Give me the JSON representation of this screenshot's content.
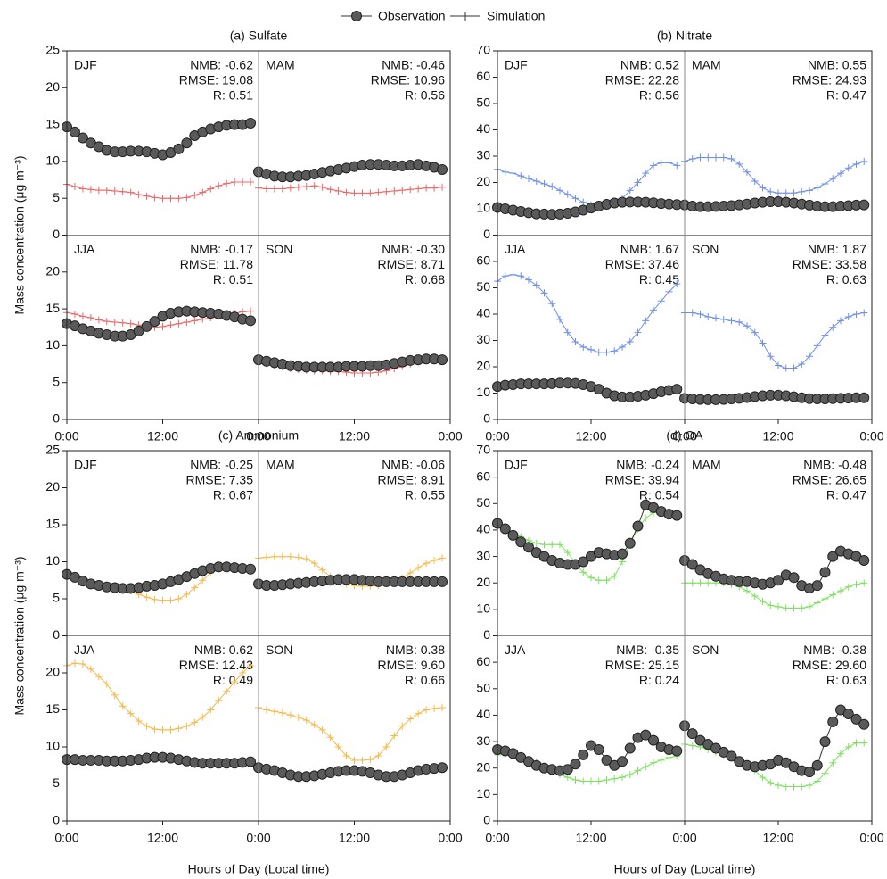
{
  "legend": {
    "observation": "Observation",
    "simulation": "Simulation",
    "observation_color": "#5a5a5a"
  },
  "chart_data": [
    {
      "type": "line",
      "title": "(a) Sulfate",
      "y_label": "Mass concentration (μg m⁻³)",
      "x": [
        0,
        1,
        2,
        3,
        4,
        5,
        6,
        7,
        8,
        9,
        10,
        11,
        12,
        13,
        14,
        15,
        16,
        17,
        18,
        19,
        20,
        21,
        22,
        23
      ],
      "xlim": [
        0,
        24
      ],
      "xticks": [
        {
          "value": 0,
          "label": "0:00"
        },
        {
          "value": 12,
          "label": "12:00"
        },
        {
          "value": 24,
          "label": "0:00"
        }
      ],
      "ylim": [
        0,
        25
      ],
      "yticks": [
        0,
        5,
        10,
        15,
        20,
        25
      ],
      "seasons": [
        "DJF",
        "MAM",
        "JJA",
        "SON"
      ],
      "stats": [
        [
          "NMB: -0.62",
          "RMSE: 19.08",
          "R: 0.51"
        ],
        [
          "NMB: -0.46",
          "RMSE: 10.96",
          "R: 0.56"
        ],
        [
          "NMB: -0.17",
          "RMSE: 11.78",
          "R: 0.51"
        ],
        [
          "NMB: -0.30",
          "RMSE: 8.71",
          "R: 0.68"
        ]
      ],
      "observation": {
        "values": [
          [
            14.7,
            14.0,
            13.2,
            12.5,
            12.0,
            11.5,
            11.3,
            11.3,
            11.4,
            11.4,
            11.3,
            11.1,
            10.9,
            11.2,
            11.7,
            12.5,
            13.5,
            14.0,
            14.4,
            14.7,
            14.9,
            15.0,
            15.0,
            15.2
          ],
          [
            8.6,
            8.3,
            8.0,
            7.9,
            7.9,
            8.0,
            8.1,
            8.3,
            8.5,
            8.7,
            8.9,
            9.1,
            9.3,
            9.5,
            9.6,
            9.6,
            9.5,
            9.4,
            9.4,
            9.5,
            9.6,
            9.4,
            9.2,
            8.9
          ],
          [
            13.0,
            12.7,
            12.3,
            12.0,
            11.7,
            11.5,
            11.3,
            11.3,
            11.5,
            12.0,
            12.6,
            13.3,
            14.0,
            14.4,
            14.6,
            14.7,
            14.6,
            14.5,
            14.4,
            14.3,
            14.1,
            13.9,
            13.6,
            13.4
          ],
          [
            8.1,
            7.9,
            7.7,
            7.5,
            7.3,
            7.2,
            7.1,
            7.1,
            7.1,
            7.1,
            7.1,
            7.2,
            7.2,
            7.2,
            7.3,
            7.3,
            7.4,
            7.6,
            7.8,
            8.0,
            8.1,
            8.2,
            8.2,
            8.1
          ]
        ]
      },
      "simulation": {
        "color": "#e8686b",
        "values": [
          [
            6.9,
            6.6,
            6.3,
            6.2,
            6.1,
            6.1,
            6.0,
            5.9,
            5.8,
            5.5,
            5.3,
            5.1,
            5.0,
            5.0,
            5.0,
            5.1,
            5.4,
            5.8,
            6.3,
            6.7,
            7.0,
            7.2,
            7.2,
            7.2
          ],
          [
            6.4,
            6.3,
            6.3,
            6.3,
            6.4,
            6.5,
            6.6,
            6.7,
            6.5,
            6.2,
            6.0,
            5.8,
            5.7,
            5.7,
            5.7,
            5.8,
            5.9,
            6.0,
            6.1,
            6.2,
            6.3,
            6.4,
            6.4,
            6.5
          ],
          [
            14.5,
            14.3,
            14.0,
            13.8,
            13.5,
            13.3,
            13.2,
            13.1,
            13.0,
            12.8,
            12.6,
            12.5,
            12.6,
            12.8,
            13.0,
            13.2,
            13.4,
            13.6,
            13.8,
            14.0,
            14.2,
            14.4,
            14.6,
            14.7
          ],
          [
            7.9,
            7.6,
            7.3,
            7.1,
            6.9,
            6.8,
            6.7,
            6.6,
            6.6,
            6.5,
            6.5,
            6.4,
            6.3,
            6.3,
            6.3,
            6.4,
            6.6,
            6.9,
            7.2,
            7.5,
            7.8,
            8.0,
            8.0,
            8.0
          ]
        ]
      }
    },
    {
      "type": "line",
      "title": "(b) Nitrate",
      "x": [
        0,
        1,
        2,
        3,
        4,
        5,
        6,
        7,
        8,
        9,
        10,
        11,
        12,
        13,
        14,
        15,
        16,
        17,
        18,
        19,
        20,
        21,
        22,
        23
      ],
      "xlim": [
        0,
        24
      ],
      "xticks": [
        {
          "value": 0,
          "label": "0:00"
        },
        {
          "value": 12,
          "label": "12:00"
        },
        {
          "value": 24,
          "label": "0:00"
        }
      ],
      "ylim": [
        0,
        70
      ],
      "yticks": [
        0,
        10,
        20,
        30,
        40,
        50,
        60,
        70
      ],
      "seasons": [
        "DJF",
        "MAM",
        "JJA",
        "SON"
      ],
      "stats": [
        [
          "NMB: 0.52",
          "RMSE: 22.28",
          "R: 0.56"
        ],
        [
          "NMB: 0.55",
          "RMSE: 24.93",
          "R: 0.47"
        ],
        [
          "NMB: 1.67",
          "RMSE: 37.46",
          "R: 0.45"
        ],
        [
          "NMB: 1.87",
          "RMSE: 33.58",
          "R: 0.63"
        ]
      ],
      "observation": {
        "values": [
          [
            10.5,
            10.0,
            9.5,
            9.0,
            8.5,
            8.1,
            8.0,
            7.9,
            8.0,
            8.3,
            8.8,
            9.5,
            10.3,
            11.0,
            11.7,
            12.2,
            12.5,
            12.6,
            12.6,
            12.5,
            12.3,
            12.0,
            11.8,
            11.6
          ],
          [
            11.5,
            11.0,
            10.8,
            10.8,
            10.9,
            11.0,
            11.2,
            11.5,
            11.8,
            12.2,
            12.5,
            12.7,
            12.7,
            12.5,
            12.2,
            11.8,
            11.4,
            11.0,
            10.8,
            10.8,
            11.0,
            11.2,
            11.4,
            11.5
          ],
          [
            12.5,
            13.0,
            13.2,
            13.5,
            13.5,
            13.5,
            13.5,
            13.6,
            13.8,
            13.8,
            13.7,
            13.2,
            12.5,
            11.5,
            10.0,
            9.0,
            8.5,
            8.5,
            8.8,
            9.2,
            9.8,
            10.5,
            11.0,
            11.5
          ],
          [
            8.0,
            7.8,
            7.6,
            7.5,
            7.5,
            7.6,
            7.8,
            8.0,
            8.3,
            8.7,
            9.0,
            9.2,
            9.2,
            9.0,
            8.6,
            8.2,
            7.9,
            7.8,
            7.8,
            7.9,
            8.0,
            8.1,
            8.2,
            8.2
          ]
        ]
      },
      "simulation": {
        "color": "#6f8fe8",
        "values": [
          [
            25,
            24,
            23.5,
            22.5,
            21.5,
            20.5,
            19.5,
            18.5,
            17,
            15.5,
            14,
            12.5,
            11.5,
            11,
            11,
            12,
            14,
            17,
            20,
            23.5,
            26.5,
            27.5,
            27.5,
            26.5
          ],
          [
            28,
            29,
            29.5,
            29.5,
            29.5,
            29.5,
            29,
            27,
            24,
            20.5,
            18,
            16.5,
            16,
            16,
            16,
            16.5,
            17,
            18,
            19.5,
            21.5,
            23.5,
            25.5,
            27,
            28
          ],
          [
            52.5,
            54.5,
            55,
            54.5,
            53,
            51,
            48,
            44,
            38,
            33,
            29.5,
            27.5,
            26.5,
            25.5,
            25.5,
            26,
            27.5,
            29.5,
            33,
            37.5,
            41.5,
            45,
            48.5,
            51.5
          ],
          [
            40.5,
            40.5,
            40,
            39,
            38.5,
            38,
            37.5,
            37,
            35.5,
            33,
            29,
            24,
            20.5,
            19.5,
            19.5,
            21,
            24,
            28,
            32,
            35,
            37.5,
            39,
            40,
            40.5
          ]
        ]
      }
    },
    {
      "type": "line",
      "title": "(c) Ammonium",
      "y_label": "Mass concentration (μg m⁻³)",
      "x_label": "Hours of Day (Local time)",
      "x": [
        0,
        1,
        2,
        3,
        4,
        5,
        6,
        7,
        8,
        9,
        10,
        11,
        12,
        13,
        14,
        15,
        16,
        17,
        18,
        19,
        20,
        21,
        22,
        23
      ],
      "xlim": [
        0,
        24
      ],
      "xticks": [
        {
          "value": 0,
          "label": "0:00"
        },
        {
          "value": 12,
          "label": "12:00"
        },
        {
          "value": 24,
          "label": "0:00"
        }
      ],
      "ylim": [
        0,
        25
      ],
      "yticks": [
        0,
        5,
        10,
        15,
        20,
        25
      ],
      "seasons": [
        "DJF",
        "MAM",
        "JJA",
        "SON"
      ],
      "stats": [
        [
          "NMB: -0.25",
          "RMSE: 7.35",
          "R: 0.67"
        ],
        [
          "NMB: -0.06",
          "RMSE: 8.91",
          "R: 0.55"
        ],
        [
          "NMB: 0.62",
          "RMSE: 12.43",
          "R: 0.49"
        ],
        [
          "NMB: 0.38",
          "RMSE: 9.60",
          "R: 0.66"
        ]
      ],
      "observation": {
        "values": [
          [
            8.3,
            7.9,
            7.4,
            7.0,
            6.8,
            6.6,
            6.5,
            6.4,
            6.4,
            6.5,
            6.7,
            6.8,
            7.0,
            7.3,
            7.6,
            8.0,
            8.4,
            8.8,
            9.1,
            9.3,
            9.3,
            9.2,
            9.1,
            9.0
          ],
          [
            7.0,
            6.8,
            6.8,
            6.9,
            7.0,
            7.1,
            7.2,
            7.3,
            7.4,
            7.5,
            7.6,
            7.6,
            7.6,
            7.5,
            7.4,
            7.3,
            7.3,
            7.3,
            7.3,
            7.3,
            7.3,
            7.3,
            7.3,
            7.3
          ],
          [
            8.3,
            8.3,
            8.2,
            8.2,
            8.2,
            8.1,
            8.1,
            8.1,
            8.2,
            8.3,
            8.5,
            8.6,
            8.6,
            8.5,
            8.3,
            8.1,
            7.9,
            7.8,
            7.8,
            7.8,
            7.8,
            7.8,
            7.9,
            8.0
          ],
          [
            7.2,
            7.0,
            6.8,
            6.5,
            6.2,
            6.0,
            6.0,
            6.1,
            6.3,
            6.5,
            6.7,
            6.8,
            6.8,
            6.7,
            6.5,
            6.2,
            6.0,
            6.0,
            6.2,
            6.5,
            6.8,
            7.0,
            7.1,
            7.2
          ]
        ]
      },
      "simulation": {
        "color": "#f5b94c",
        "values": [
          [
            8.7,
            8.0,
            7.3,
            6.9,
            6.7,
            6.7,
            6.6,
            6.4,
            6.1,
            5.6,
            5.2,
            4.9,
            4.8,
            4.8,
            5.0,
            5.6,
            6.5,
            7.5,
            8.5,
            9.0,
            9.3,
            9.3,
            9.1,
            9.0
          ],
          [
            10.5,
            10.6,
            10.7,
            10.7,
            10.7,
            10.6,
            10.4,
            9.8,
            8.9,
            8.0,
            7.4,
            7.0,
            6.8,
            6.7,
            6.7,
            6.8,
            7.0,
            7.3,
            7.8,
            8.5,
            9.2,
            9.8,
            10.2,
            10.5
          ],
          [
            21,
            21.3,
            21.2,
            20.5,
            19.5,
            18.5,
            17,
            15.5,
            14.5,
            13.5,
            12.8,
            12.4,
            12.3,
            12.3,
            12.5,
            12.8,
            13.3,
            14,
            15,
            16.3,
            17.5,
            18.8,
            20,
            21
          ],
          [
            15.3,
            15.0,
            14.8,
            14.6,
            14.3,
            14.0,
            13.6,
            13.0,
            12.3,
            11.3,
            10.0,
            8.8,
            8.2,
            8.2,
            8.3,
            8.8,
            10.0,
            11.5,
            12.8,
            13.8,
            14.5,
            15.0,
            15.2,
            15.3
          ]
        ]
      }
    },
    {
      "type": "line",
      "title": "(d) OA",
      "x_label": "Hours of Day (Local time)",
      "x": [
        0,
        1,
        2,
        3,
        4,
        5,
        6,
        7,
        8,
        9,
        10,
        11,
        12,
        13,
        14,
        15,
        16,
        17,
        18,
        19,
        20,
        21,
        22,
        23
      ],
      "xlim": [
        0,
        24
      ],
      "xticks": [
        {
          "value": 0,
          "label": "0:00"
        },
        {
          "value": 12,
          "label": "12:00"
        },
        {
          "value": 24,
          "label": "0:00"
        }
      ],
      "ylim": [
        0,
        70
      ],
      "yticks": [
        0,
        10,
        20,
        30,
        40,
        50,
        60,
        70
      ],
      "seasons": [
        "DJF",
        "MAM",
        "JJA",
        "SON"
      ],
      "stats": [
        [
          "NMB: -0.24",
          "RMSE: 39.94",
          "R: 0.54"
        ],
        [
          "NMB: -0.48",
          "RMSE: 26.65",
          "R: 0.47"
        ],
        [
          "NMB: -0.35",
          "RMSE: 25.15",
          "R: 0.24"
        ],
        [
          "NMB: -0.38",
          "RMSE: 29.60",
          "R: 0.63"
        ]
      ],
      "observation": {
        "values": [
          [
            42.5,
            40.5,
            38,
            35.5,
            33.5,
            31.5,
            30,
            28.5,
            27.5,
            27,
            27,
            28,
            30,
            31.5,
            31,
            30.5,
            31,
            35,
            41.5,
            49.5,
            48.5,
            47,
            46,
            45.5
          ],
          [
            28.5,
            27,
            25,
            23.5,
            22.5,
            21.5,
            21,
            20.5,
            20.5,
            20,
            19.5,
            20,
            21,
            23,
            22,
            19,
            18,
            19,
            24,
            30,
            32,
            31,
            30,
            28.5
          ],
          [
            27,
            26.5,
            25.5,
            24,
            22.5,
            21,
            20,
            19.5,
            19,
            19.5,
            21.5,
            25,
            28.5,
            27,
            23,
            21,
            22.5,
            27.5,
            31.5,
            32.5,
            30.5,
            28,
            27,
            26.5
          ],
          [
            36,
            33,
            30.5,
            29,
            27.5,
            26,
            24.5,
            22.5,
            21,
            20.5,
            21,
            21.5,
            23,
            22,
            20.5,
            19,
            18.5,
            21,
            30,
            37.5,
            42,
            40.5,
            38.5,
            36.5
          ]
        ]
      },
      "simulation": {
        "color": "#7ee060",
        "values": [
          [
            42.5,
            41,
            39,
            37.5,
            36,
            35,
            34.5,
            34.5,
            34.5,
            31.5,
            27.5,
            24,
            22,
            21,
            21,
            22.5,
            28,
            35,
            40.5,
            44.5,
            46.5,
            47,
            46.5,
            45.5
          ],
          [
            20,
            20,
            20,
            20,
            20,
            20,
            19.5,
            18.5,
            17,
            15,
            13,
            11.5,
            11,
            10.5,
            10.5,
            10.5,
            11,
            12.5,
            14,
            15.5,
            17,
            18.5,
            19.5,
            20
          ],
          [
            25,
            25.5,
            25,
            24,
            23,
            22,
            20.5,
            19,
            17.5,
            16.5,
            15.5,
            15,
            15,
            15,
            15.5,
            16,
            16.5,
            17.5,
            19,
            20.5,
            22,
            23,
            24,
            24.5
          ],
          [
            29,
            28.5,
            28,
            27,
            26,
            25,
            24,
            23,
            21.5,
            19,
            16.5,
            14.5,
            13.5,
            13,
            13,
            13,
            13.5,
            15,
            18,
            22,
            25.5,
            28,
            29.5,
            29.5
          ]
        ]
      }
    }
  ]
}
